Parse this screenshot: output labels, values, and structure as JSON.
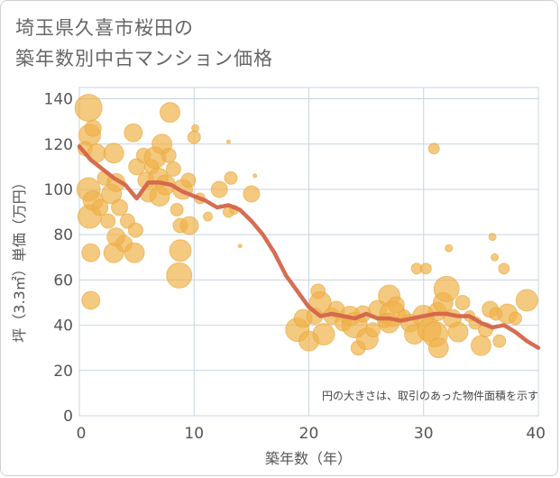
{
  "title_line1": "埼玉県久喜市桜田の",
  "title_line2": "築年数別中古マンション価格",
  "colors": {
    "bubble_fill": "#f0b24a",
    "bubble_stroke": "#e8a63a",
    "line": "#d4654a",
    "grid": "#c8d4e0",
    "axis_text": "#555555"
  },
  "chart_data": {
    "type": "scatter",
    "title": "埼玉県久喜市桜田の築年数別中古マンション価格",
    "xlabel": "築年数（年）",
    "ylabel": "坪（3.3㎡）単価（万円）",
    "xlim": [
      0,
      40
    ],
    "ylim": [
      0,
      145
    ],
    "xticks": [
      "0",
      "10",
      "20",
      "30",
      "40"
    ],
    "yticks": [
      "0",
      "20",
      "40",
      "60",
      "80",
      "100",
      "120",
      "140"
    ],
    "grid": true,
    "note": "円の大きさは、取引のあった物件面積を示す",
    "scatter_points": [
      {
        "x": 0.8,
        "y": 136,
        "r": 15
      },
      {
        "x": 0.9,
        "y": 124,
        "r": 12
      },
      {
        "x": 1.2,
        "y": 127,
        "r": 9
      },
      {
        "x": 0.5,
        "y": 118,
        "r": 8
      },
      {
        "x": 1.5,
        "y": 116,
        "r": 10
      },
      {
        "x": 0.8,
        "y": 100,
        "r": 13
      },
      {
        "x": 1.2,
        "y": 95,
        "r": 11
      },
      {
        "x": 0.9,
        "y": 88,
        "r": 13
      },
      {
        "x": 1.8,
        "y": 92,
        "r": 9
      },
      {
        "x": 2.2,
        "y": 105,
        "r": 8
      },
      {
        "x": 2.8,
        "y": 98,
        "r": 11
      },
      {
        "x": 3.2,
        "y": 103,
        "r": 10
      },
      {
        "x": 3.0,
        "y": 116,
        "r": 11
      },
      {
        "x": 3.5,
        "y": 92,
        "r": 9
      },
      {
        "x": 2.5,
        "y": 86,
        "r": 8
      },
      {
        "x": 1.0,
        "y": 72,
        "r": 10
      },
      {
        "x": 1.0,
        "y": 51,
        "r": 10
      },
      {
        "x": 3.0,
        "y": 72,
        "r": 11
      },
      {
        "x": 3.2,
        "y": 79,
        "r": 10
      },
      {
        "x": 3.9,
        "y": 76,
        "r": 9
      },
      {
        "x": 4.2,
        "y": 86,
        "r": 8
      },
      {
        "x": 4.8,
        "y": 72,
        "r": 11
      },
      {
        "x": 4.9,
        "y": 82,
        "r": 8
      },
      {
        "x": 4.7,
        "y": 125,
        "r": 10
      },
      {
        "x": 5.0,
        "y": 110,
        "r": 9
      },
      {
        "x": 5.6,
        "y": 115,
        "r": 8
      },
      {
        "x": 5.8,
        "y": 104,
        "r": 9
      },
      {
        "x": 6.0,
        "y": 98,
        "r": 9
      },
      {
        "x": 6.3,
        "y": 110,
        "r": 8
      },
      {
        "x": 6.6,
        "y": 114,
        "r": 12
      },
      {
        "x": 6.9,
        "y": 105,
        "r": 11
      },
      {
        "x": 7.2,
        "y": 120,
        "r": 11
      },
      {
        "x": 7.0,
        "y": 97,
        "r": 11
      },
      {
        "x": 7.5,
        "y": 102,
        "r": 11
      },
      {
        "x": 7.8,
        "y": 115,
        "r": 8
      },
      {
        "x": 8.2,
        "y": 109,
        "r": 8
      },
      {
        "x": 7.9,
        "y": 134,
        "r": 11
      },
      {
        "x": 8.5,
        "y": 91,
        "r": 7
      },
      {
        "x": 8.8,
        "y": 84,
        "r": 8
      },
      {
        "x": 8.8,
        "y": 73,
        "r": 12
      },
      {
        "x": 8.7,
        "y": 62,
        "r": 14
      },
      {
        "x": 9.0,
        "y": 100,
        "r": 11
      },
      {
        "x": 9.6,
        "y": 84,
        "r": 10
      },
      {
        "x": 9.5,
        "y": 104,
        "r": 8
      },
      {
        "x": 10.0,
        "y": 123,
        "r": 7
      },
      {
        "x": 10.1,
        "y": 127,
        "r": 4
      },
      {
        "x": 10.5,
        "y": 96,
        "r": 6
      },
      {
        "x": 11.2,
        "y": 88,
        "r": 5
      },
      {
        "x": 12.2,
        "y": 100,
        "r": 9
      },
      {
        "x": 13.2,
        "y": 105,
        "r": 7
      },
      {
        "x": 13.0,
        "y": 90,
        "r": 6
      },
      {
        "x": 13.5,
        "y": 91,
        "r": 5
      },
      {
        "x": 13.0,
        "y": 121,
        "r": 2
      },
      {
        "x": 14.0,
        "y": 75,
        "r": 2
      },
      {
        "x": 15.0,
        "y": 98,
        "r": 9
      },
      {
        "x": 15.3,
        "y": 106,
        "r": 2
      },
      {
        "x": 19.0,
        "y": 38,
        "r": 13
      },
      {
        "x": 19.5,
        "y": 43,
        "r": 10
      },
      {
        "x": 20.0,
        "y": 33,
        "r": 11
      },
      {
        "x": 20.5,
        "y": 44,
        "r": 9
      },
      {
        "x": 20.8,
        "y": 55,
        "r": 8
      },
      {
        "x": 21.0,
        "y": 50,
        "r": 12
      },
      {
        "x": 21.3,
        "y": 36,
        "r": 12
      },
      {
        "x": 22.0,
        "y": 44,
        "r": 9
      },
      {
        "x": 22.4,
        "y": 47,
        "r": 9
      },
      {
        "x": 23.0,
        "y": 41,
        "r": 9
      },
      {
        "x": 23.6,
        "y": 44,
        "r": 11
      },
      {
        "x": 24.0,
        "y": 40,
        "r": 14
      },
      {
        "x": 24.3,
        "y": 30,
        "r": 8
      },
      {
        "x": 24.7,
        "y": 45,
        "r": 9
      },
      {
        "x": 25.1,
        "y": 34,
        "r": 12
      },
      {
        "x": 25.6,
        "y": 38,
        "r": 8
      },
      {
        "x": 26.0,
        "y": 47,
        "r": 10
      },
      {
        "x": 26.6,
        "y": 42,
        "r": 8
      },
      {
        "x": 27.0,
        "y": 53,
        "r": 12
      },
      {
        "x": 27.3,
        "y": 45,
        "r": 14
      },
      {
        "x": 27.0,
        "y": 41,
        "r": 11
      },
      {
        "x": 27.6,
        "y": 49,
        "r": 9
      },
      {
        "x": 28.3,
        "y": 44,
        "r": 7
      },
      {
        "x": 28.8,
        "y": 41,
        "r": 10
      },
      {
        "x": 29.2,
        "y": 36,
        "r": 11
      },
      {
        "x": 29.4,
        "y": 65,
        "r": 6
      },
      {
        "x": 30.2,
        "y": 65,
        "r": 6
      },
      {
        "x": 30.0,
        "y": 44,
        "r": 12
      },
      {
        "x": 30.5,
        "y": 38,
        "r": 13
      },
      {
        "x": 31.0,
        "y": 36,
        "r": 14
      },
      {
        "x": 31.3,
        "y": 30,
        "r": 11
      },
      {
        "x": 30.9,
        "y": 118,
        "r": 6
      },
      {
        "x": 31.2,
        "y": 46,
        "r": 10
      },
      {
        "x": 31.7,
        "y": 50,
        "r": 11
      },
      {
        "x": 32.0,
        "y": 56,
        "r": 14
      },
      {
        "x": 32.2,
        "y": 74,
        "r": 4
      },
      {
        "x": 32.5,
        "y": 43,
        "r": 10
      },
      {
        "x": 33.0,
        "y": 37,
        "r": 11
      },
      {
        "x": 33.4,
        "y": 50,
        "r": 8
      },
      {
        "x": 34.0,
        "y": 44,
        "r": 6
      },
      {
        "x": 34.5,
        "y": 41,
        "r": 7
      },
      {
        "x": 35.0,
        "y": 31,
        "r": 11
      },
      {
        "x": 35.4,
        "y": 38,
        "r": 8
      },
      {
        "x": 35.8,
        "y": 47,
        "r": 9
      },
      {
        "x": 36.0,
        "y": 79,
        "r": 4
      },
      {
        "x": 36.2,
        "y": 70,
        "r": 4
      },
      {
        "x": 36.3,
        "y": 45,
        "r": 7
      },
      {
        "x": 36.6,
        "y": 33,
        "r": 7
      },
      {
        "x": 37.0,
        "y": 65,
        "r": 6
      },
      {
        "x": 37.3,
        "y": 45,
        "r": 11
      },
      {
        "x": 38.0,
        "y": 43,
        "r": 7
      },
      {
        "x": 39.0,
        "y": 51,
        "r": 12
      }
    ],
    "trend_line": [
      {
        "x": 0,
        "y": 119
      },
      {
        "x": 1,
        "y": 113
      },
      {
        "x": 2,
        "y": 109
      },
      {
        "x": 3,
        "y": 105
      },
      {
        "x": 4,
        "y": 102
      },
      {
        "x": 5,
        "y": 96
      },
      {
        "x": 6,
        "y": 103
      },
      {
        "x": 7,
        "y": 103
      },
      {
        "x": 8,
        "y": 102
      },
      {
        "x": 9,
        "y": 99
      },
      {
        "x": 10,
        "y": 97
      },
      {
        "x": 11,
        "y": 95
      },
      {
        "x": 12,
        "y": 92
      },
      {
        "x": 13,
        "y": 93
      },
      {
        "x": 14,
        "y": 91
      },
      {
        "x": 15,
        "y": 86
      },
      {
        "x": 16,
        "y": 80
      },
      {
        "x": 17,
        "y": 72
      },
      {
        "x": 18,
        "y": 62
      },
      {
        "x": 19,
        "y": 55
      },
      {
        "x": 20,
        "y": 48
      },
      {
        "x": 21,
        "y": 44
      },
      {
        "x": 22,
        "y": 45
      },
      {
        "x": 23,
        "y": 44
      },
      {
        "x": 24,
        "y": 43
      },
      {
        "x": 25,
        "y": 45
      },
      {
        "x": 26,
        "y": 43
      },
      {
        "x": 27,
        "y": 43
      },
      {
        "x": 28,
        "y": 42
      },
      {
        "x": 29,
        "y": 43
      },
      {
        "x": 30,
        "y": 44
      },
      {
        "x": 31,
        "y": 45
      },
      {
        "x": 32,
        "y": 45
      },
      {
        "x": 33,
        "y": 44
      },
      {
        "x": 34,
        "y": 44
      },
      {
        "x": 35,
        "y": 41
      },
      {
        "x": 36,
        "y": 39
      },
      {
        "x": 37,
        "y": 40
      },
      {
        "x": 38,
        "y": 37
      },
      {
        "x": 39,
        "y": 33
      },
      {
        "x": 40,
        "y": 30
      }
    ]
  }
}
